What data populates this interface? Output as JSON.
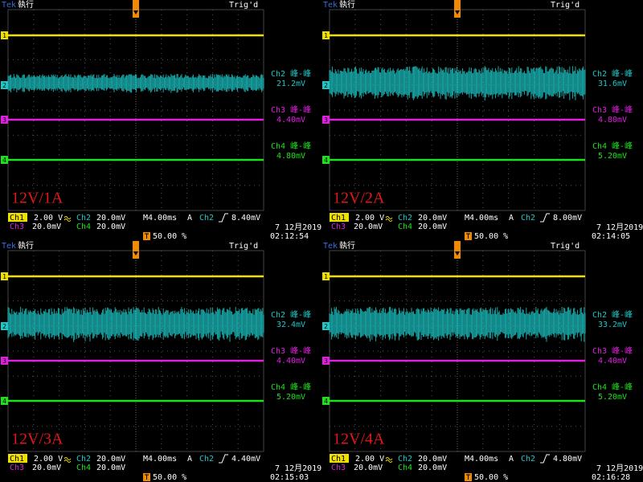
{
  "panels": [
    {
      "brand": "Tek",
      "status": "執行",
      "trigger_state": "Trig'd",
      "label": "12V/1A",
      "channel_markers": [
        "1",
        "2",
        "3",
        "4"
      ],
      "measurements": [
        {
          "name": "Ch2 峰-峰",
          "value": "21.2mV"
        },
        {
          "name": "Ch3 峰-峰",
          "value": "4.40mV"
        },
        {
          "name": "Ch4 峰-峰",
          "value": "4.80mV"
        }
      ],
      "ch1": {
        "name": "Ch1",
        "scale": "2.00 V"
      },
      "ch2": {
        "name": "Ch2",
        "scale": "20.0mV"
      },
      "ch3": {
        "name": "Ch3",
        "scale": "20.0mV"
      },
      "ch4": {
        "name": "Ch4",
        "scale": "20.0mV"
      },
      "timebase": "M4.00ms",
      "trigger_mode": "A",
      "trigger_source": "Ch2",
      "trigger_level": "8.40mV",
      "date": "7 12月2019",
      "time": "02:12:54",
      "trigger_position": "50.00 %"
    },
    {
      "brand": "Tek",
      "status": "執行",
      "trigger_state": "Trig'd",
      "label": "12V/2A",
      "channel_markers": [
        "1",
        "2",
        "3",
        "4"
      ],
      "measurements": [
        {
          "name": "Ch2 峰-峰",
          "value": "31.6mV"
        },
        {
          "name": "Ch3 峰-峰",
          "value": "4.80mV"
        },
        {
          "name": "Ch4 峰-峰",
          "value": "5.20mV"
        }
      ],
      "ch1": {
        "name": "Ch1",
        "scale": "2.00 V"
      },
      "ch2": {
        "name": "Ch2",
        "scale": "20.0mV"
      },
      "ch3": {
        "name": "Ch3",
        "scale": "20.0mV"
      },
      "ch4": {
        "name": "Ch4",
        "scale": "20.0mV"
      },
      "timebase": "M4.00ms",
      "trigger_mode": "A",
      "trigger_source": "Ch2",
      "trigger_level": "8.00mV",
      "date": "7 12月2019",
      "time": "02:14:05",
      "trigger_position": "50.00 %"
    },
    {
      "brand": "Tek",
      "status": "執行",
      "trigger_state": "Trig'd",
      "label": "12V/3A",
      "channel_markers": [
        "1",
        "2",
        "3",
        "4"
      ],
      "measurements": [
        {
          "name": "Ch2 峰-峰",
          "value": "32.4mV"
        },
        {
          "name": "Ch3 峰-峰",
          "value": "4.40mV"
        },
        {
          "name": "Ch4 峰-峰",
          "value": "5.20mV"
        }
      ],
      "ch1": {
        "name": "Ch1",
        "scale": "2.00 V"
      },
      "ch2": {
        "name": "Ch2",
        "scale": "20.0mV"
      },
      "ch3": {
        "name": "Ch3",
        "scale": "20.0mV"
      },
      "ch4": {
        "name": "Ch4",
        "scale": "20.0mV"
      },
      "timebase": "M4.00ms",
      "trigger_mode": "A",
      "trigger_source": "Ch2",
      "trigger_level": "4.40mV",
      "date": "7 12月2019",
      "time": "02:15:03",
      "trigger_position": "50.00 %"
    },
    {
      "brand": "Tek",
      "status": "執行",
      "trigger_state": "Trig'd",
      "label": "12V/4A",
      "channel_markers": [
        "1",
        "2",
        "3",
        "4"
      ],
      "measurements": [
        {
          "name": "Ch2 峰-峰",
          "value": "33.2mV"
        },
        {
          "name": "Ch3 峰-峰",
          "value": "4.40mV"
        },
        {
          "name": "Ch4 峰-峰",
          "value": "5.20mV"
        }
      ],
      "ch1": {
        "name": "Ch1",
        "scale": "2.00 V"
      },
      "ch2": {
        "name": "Ch2",
        "scale": "20.0mV"
      },
      "ch3": {
        "name": "Ch3",
        "scale": "20.0mV"
      },
      "ch4": {
        "name": "Ch4",
        "scale": "20.0mV"
      },
      "timebase": "M4.00ms",
      "trigger_mode": "A",
      "trigger_source": "Ch2",
      "trigger_level": "4.80mV",
      "date": "7 12月2019",
      "time": "02:16:28",
      "trigger_position": "50.00 %"
    }
  ]
}
